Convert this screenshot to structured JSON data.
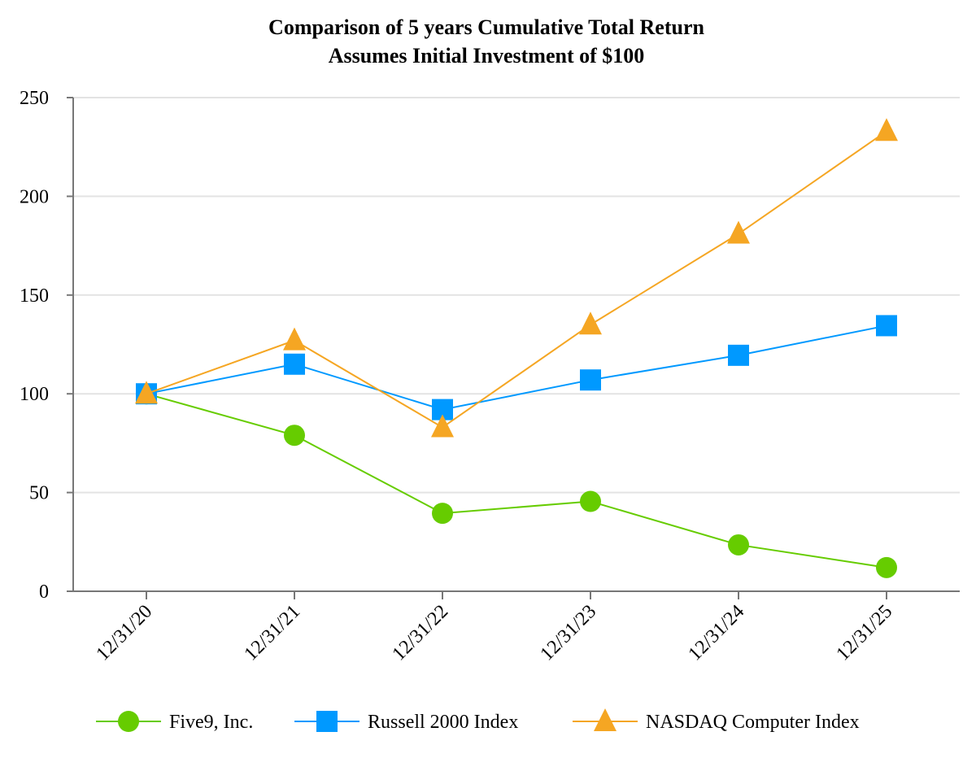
{
  "chart_data": {
    "type": "line",
    "title": "Comparison of 5 years Cumulative Total Return",
    "subtitle": "Assumes Initial Investment of $100",
    "xlabel": "",
    "ylabel": "",
    "categories": [
      "12/31/20",
      "12/31/21",
      "12/31/22",
      "12/31/23",
      "12/31/24",
      "12/31/25"
    ],
    "ylim": [
      0,
      250
    ],
    "yticks": [
      0,
      50,
      100,
      150,
      200,
      250
    ],
    "grid": true,
    "legend_position": "bottom",
    "series": [
      {
        "name": "Five9, Inc.",
        "color": "#66cc00",
        "marker": "circle",
        "values": [
          100,
          79,
          39.5,
          45.5,
          23.5,
          12
        ]
      },
      {
        "name": "Russell 2000 Index",
        "color": "#0099ff",
        "marker": "square",
        "values": [
          100,
          115,
          92,
          107,
          119.5,
          134.5
        ]
      },
      {
        "name": "NASDAQ Computer Index",
        "color": "#f5a623",
        "marker": "triangle",
        "values": [
          100,
          127,
          83,
          135,
          181,
          233
        ]
      }
    ]
  }
}
